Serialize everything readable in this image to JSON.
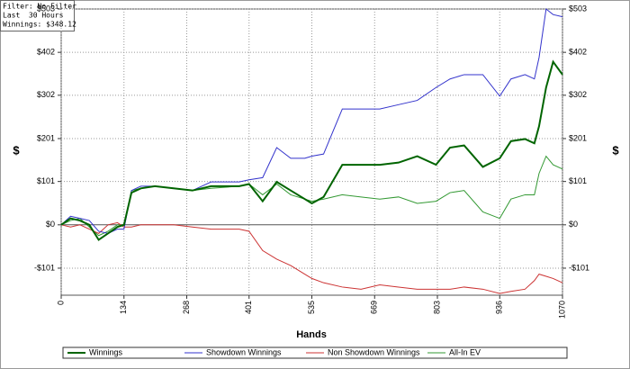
{
  "info_box": [
    "Filter: No Filter",
    "Last  30 Hours",
    "Winnings: $348.12"
  ],
  "chart_data": {
    "type": "line",
    "x_label": "Hands",
    "y_label": "$",
    "y2_label": "$",
    "x": [
      0,
      20,
      40,
      60,
      80,
      100,
      120,
      134,
      150,
      170,
      200,
      240,
      280,
      320,
      380,
      401,
      430,
      460,
      490,
      520,
      535,
      560,
      600,
      640,
      680,
      720,
      760,
      800,
      830,
      860,
      900,
      936,
      960,
      990,
      1010,
      1020,
      1035,
      1050,
      1070
    ],
    "series": [
      {
        "name": "Winnings",
        "color": "#006400",
        "values": [
          0,
          15,
          10,
          0,
          -35,
          -20,
          -5,
          0,
          75,
          85,
          90,
          85,
          80,
          90,
          90,
          95,
          55,
          100,
          80,
          60,
          50,
          65,
          140,
          140,
          140,
          145,
          160,
          140,
          180,
          185,
          135,
          155,
          195,
          200,
          190,
          230,
          320,
          380,
          350
        ]
      },
      {
        "name": "Showdown Winnings",
        "color": "#3333cc",
        "values": [
          0,
          20,
          15,
          10,
          -15,
          -20,
          -10,
          -10,
          80,
          90,
          90,
          85,
          80,
          100,
          100,
          105,
          110,
          180,
          155,
          155,
          160,
          165,
          270,
          270,
          270,
          280,
          290,
          320,
          340,
          350,
          350,
          300,
          340,
          350,
          340,
          390,
          503,
          490,
          485
        ]
      },
      {
        "name": "Non Showdown Winnings",
        "color": "#cc3333",
        "values": [
          0,
          -5,
          0,
          -10,
          -20,
          0,
          5,
          -5,
          -5,
          0,
          0,
          0,
          -5,
          -10,
          -10,
          -15,
          -60,
          -80,
          -95,
          -115,
          -125,
          -135,
          -145,
          -150,
          -140,
          -145,
          -150,
          -150,
          -150,
          -145,
          -150,
          -160,
          -155,
          -150,
          -130,
          -115,
          -120,
          -125,
          -135
        ]
      },
      {
        "name": "All-In EV",
        "color": "#339933",
        "values": [
          0,
          10,
          15,
          -5,
          -25,
          -15,
          0,
          0,
          80,
          85,
          90,
          85,
          80,
          85,
          90,
          95,
          70,
          95,
          70,
          60,
          55,
          60,
          70,
          65,
          60,
          65,
          50,
          55,
          75,
          80,
          30,
          15,
          60,
          70,
          70,
          120,
          160,
          140,
          130
        ]
      }
    ],
    "xlim": [
      0,
      1070
    ],
    "xticks": [
      0,
      134,
      268,
      401,
      535,
      669,
      803,
      936,
      1070
    ],
    "ylim": [
      -164,
      503
    ],
    "yticks": [
      {
        "value": -101,
        "label": "-$101"
      },
      {
        "value": 0,
        "label": "$0"
      },
      {
        "value": 101,
        "label": "$101"
      },
      {
        "value": 201,
        "label": "$201"
      },
      {
        "value": 302,
        "label": "$302"
      },
      {
        "value": 402,
        "label": "$402"
      },
      {
        "value": 503,
        "label": "$503"
      }
    ],
    "y2lim": [
      -164,
      503
    ],
    "y2ticks": [
      {
        "value": -101,
        "label": "-$101"
      },
      {
        "value": 0,
        "label": "$0"
      },
      {
        "value": 101,
        "label": "$101"
      },
      {
        "value": 201,
        "label": "$201"
      },
      {
        "value": 302,
        "label": "$302"
      },
      {
        "value": 402,
        "label": "$402"
      },
      {
        "value": 503,
        "label": "$503"
      }
    ],
    "grid": true,
    "legend": "bottom"
  }
}
